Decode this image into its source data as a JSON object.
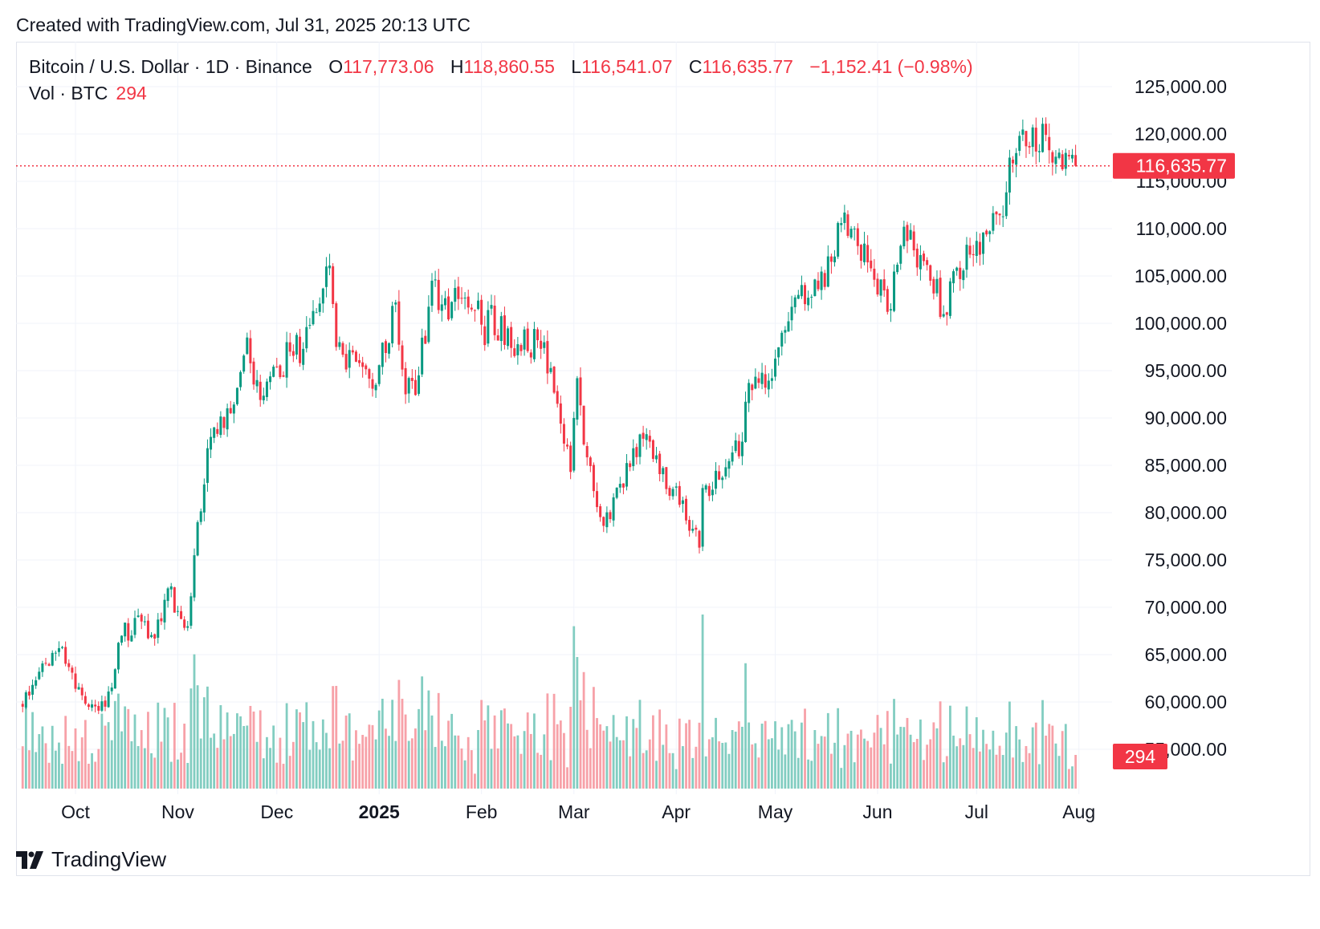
{
  "header": {
    "created": "Created with TradingView.com, Jul 31, 2025 20:13 UTC"
  },
  "legend": {
    "symbol": "Bitcoin / U.S. Dollar · 1D · Binance",
    "o_label": "O",
    "o_value": "117,773.06",
    "h_label": "H",
    "h_value": "118,860.55",
    "l_label": "L",
    "l_value": "116,541.07",
    "c_label": "C",
    "c_value": "116,635.77",
    "change": "−1,152.41 (−0.98%)",
    "vol_label": "Vol · BTC",
    "vol_value": "294"
  },
  "price_tag": "116,635.77",
  "volume_tag": "294",
  "footer": {
    "brand": "TradingView",
    "logo_icon": "tradingview-logo-icon"
  },
  "colors": {
    "up": "#089981",
    "down": "#f23645",
    "up_vol": "#82cdc1",
    "down_vol": "#f7a1a8",
    "grid": "#f0f3fa"
  },
  "chart_data": {
    "type": "candlestick",
    "title": "Bitcoin / U.S. Dollar · 1D · Binance",
    "ylim": [
      53000,
      127000
    ],
    "y_ticks": [
      "125,000.00",
      "120,000.00",
      "115,000.00",
      "110,000.00",
      "105,000.00",
      "100,000.00",
      "95,000.00",
      "90,000.00",
      "85,000.00",
      "80,000.00",
      "75,000.00",
      "70,000.00",
      "65,000.00",
      "60,000.00",
      "55,000.00"
    ],
    "x_ticks": [
      "Oct",
      "Nov",
      "Dec",
      "2025",
      "Feb",
      "Mar",
      "Apr",
      "May",
      "Jun",
      "Jul",
      "Aug"
    ],
    "last_close": 116635.77,
    "last_volume": 294,
    "close_anchors": [
      {
        "date": "2024-09-15",
        "close": 59500
      },
      {
        "date": "2024-09-18",
        "close": 61800
      },
      {
        "date": "2024-09-27",
        "close": 65800
      },
      {
        "date": "2024-10-03",
        "close": 60700
      },
      {
        "date": "2024-10-10",
        "close": 59500
      },
      {
        "date": "2024-10-15",
        "close": 67000
      },
      {
        "date": "2024-10-21",
        "close": 68500
      },
      {
        "date": "2024-10-25",
        "close": 66700
      },
      {
        "date": "2024-10-29",
        "close": 72000
      },
      {
        "date": "2024-11-04",
        "close": 68000
      },
      {
        "date": "2024-11-06",
        "close": 75500
      },
      {
        "date": "2024-11-11",
        "close": 88000
      },
      {
        "date": "2024-11-17",
        "close": 90500
      },
      {
        "date": "2024-11-22",
        "close": 98500
      },
      {
        "date": "2024-11-26",
        "close": 91900
      },
      {
        "date": "2024-12-05",
        "close": 97000
      },
      {
        "date": "2024-12-09",
        "close": 97300
      },
      {
        "date": "2024-12-12",
        "close": 101300
      },
      {
        "date": "2024-12-16",
        "close": 106000
      },
      {
        "date": "2024-12-17",
        "close": 106100
      },
      {
        "date": "2024-12-19",
        "close": 97500
      },
      {
        "date": "2024-12-26",
        "close": 95800
      },
      {
        "date": "2024-12-31",
        "close": 93500
      },
      {
        "date": "2025-01-06",
        "close": 102200
      },
      {
        "date": "2025-01-09",
        "close": 92500
      },
      {
        "date": "2025-01-13",
        "close": 94500
      },
      {
        "date": "2025-01-17",
        "close": 104500
      },
      {
        "date": "2025-01-20",
        "close": 102000
      },
      {
        "date": "2025-01-26",
        "close": 102600
      },
      {
        "date": "2025-01-31",
        "close": 102400
      },
      {
        "date": "2025-02-02",
        "close": 97700
      },
      {
        "date": "2025-02-03",
        "close": 101400
      },
      {
        "date": "2025-02-10",
        "close": 97400
      },
      {
        "date": "2025-02-20",
        "close": 98000
      },
      {
        "date": "2025-02-24",
        "close": 91500
      },
      {
        "date": "2025-02-28",
        "close": 84300
      },
      {
        "date": "2025-03-02",
        "close": 94200
      },
      {
        "date": "2025-03-04",
        "close": 87200
      },
      {
        "date": "2025-03-10",
        "close": 78600
      },
      {
        "date": "2025-03-19",
        "close": 86800
      },
      {
        "date": "2025-03-24",
        "close": 87500
      },
      {
        "date": "2025-03-31",
        "close": 82500
      },
      {
        "date": "2025-04-06",
        "close": 78300
      },
      {
        "date": "2025-04-08",
        "close": 76300
      },
      {
        "date": "2025-04-09",
        "close": 82600
      },
      {
        "date": "2025-04-15",
        "close": 83700
      },
      {
        "date": "2025-04-21",
        "close": 87500
      },
      {
        "date": "2025-04-23",
        "close": 93700
      },
      {
        "date": "2025-04-30",
        "close": 94200
      },
      {
        "date": "2025-05-08",
        "close": 103000
      },
      {
        "date": "2025-05-12",
        "close": 102800
      },
      {
        "date": "2025-05-18",
        "close": 106500
      },
      {
        "date": "2025-05-22",
        "close": 111700
      },
      {
        "date": "2025-05-31",
        "close": 104600
      },
      {
        "date": "2025-06-05",
        "close": 101500
      },
      {
        "date": "2025-06-09",
        "close": 110200
      },
      {
        "date": "2025-06-13",
        "close": 105900
      },
      {
        "date": "2025-06-17",
        "close": 104500
      },
      {
        "date": "2025-06-22",
        "close": 100900
      },
      {
        "date": "2025-06-24",
        "close": 105500
      },
      {
        "date": "2025-06-30",
        "close": 107200
      },
      {
        "date": "2025-07-03",
        "close": 109600
      },
      {
        "date": "2025-07-09",
        "close": 111300
      },
      {
        "date": "2025-07-11",
        "close": 117500
      },
      {
        "date": "2025-07-14",
        "close": 119800
      },
      {
        "date": "2025-07-16",
        "close": 118700
      },
      {
        "date": "2025-07-22",
        "close": 119900
      },
      {
        "date": "2025-07-25",
        "close": 117600
      },
      {
        "date": "2025-07-28",
        "close": 118000
      },
      {
        "date": "2025-07-30",
        "close": 117800
      },
      {
        "date": "2025-07-31",
        "close": 116635.77
      }
    ]
  }
}
